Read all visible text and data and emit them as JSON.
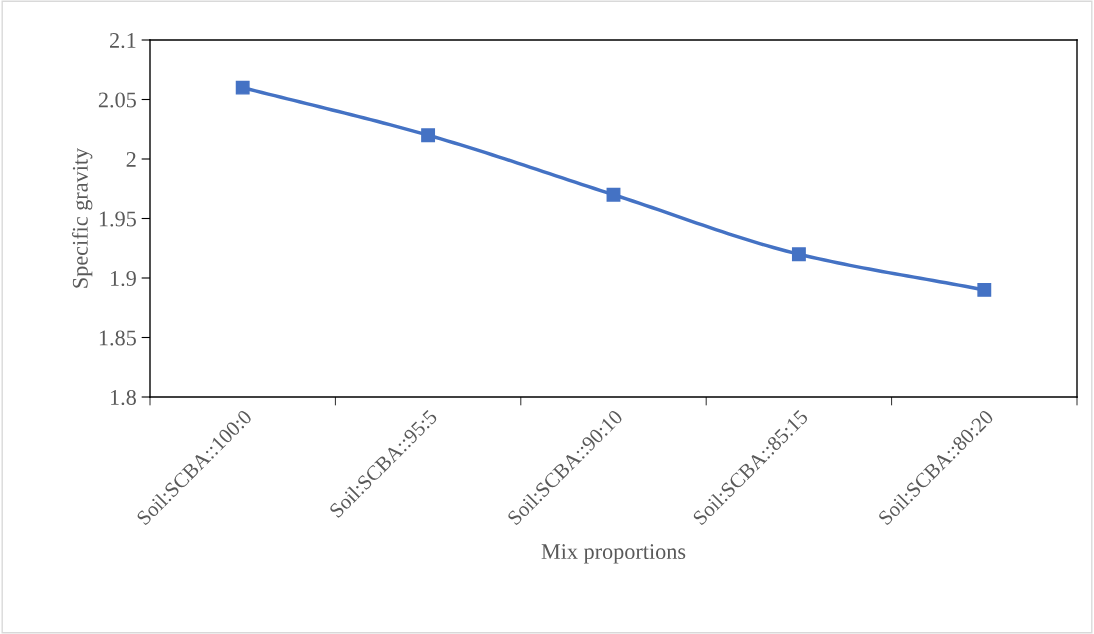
{
  "chart_data": {
    "type": "line",
    "xlabel": "Mix proportions",
    "ylabel": "Specific gravity",
    "categories": [
      "Soil:SCBA::100:0",
      "Soil:SCBA::95:5",
      "Soil:SCBA::90:10",
      "Soil:SCBA::85:15",
      "Soil:SCBA::80:20"
    ],
    "series": [
      {
        "color": "#4472c4",
        "values": [
          2.06,
          2.02,
          1.97,
          1.92,
          1.89
        ]
      }
    ],
    "ylim": [
      1.8,
      2.1
    ],
    "yticks": [
      1.8,
      1.85,
      1.9,
      1.95,
      2,
      2.05,
      2.1
    ],
    "marker": "square",
    "line_style": "solid",
    "grid": false,
    "legend": false
  }
}
